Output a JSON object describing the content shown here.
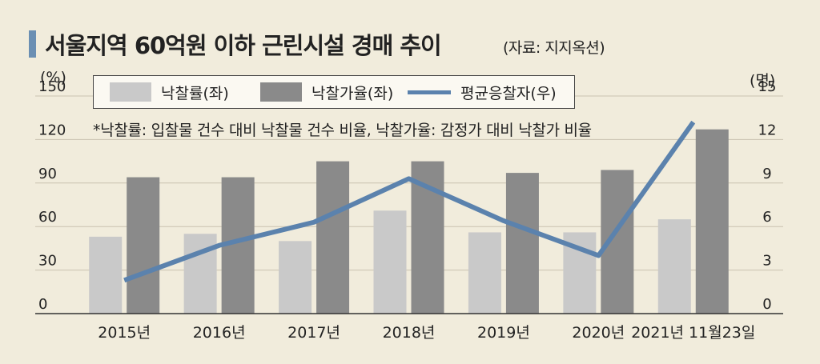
{
  "header": {
    "title": "서울지역 60억원 이하 근린시설 경매 추이",
    "source": "(자료: 지지옥션)"
  },
  "footnote": "*낙찰률: 입찰물 건수 대비 낙찰물 건수 비율, 낙찰가율: 감정가 대비 낙찰가 비율",
  "colors": {
    "background": "#f1ecdc",
    "rate_bar": "#c9c9c9",
    "price_ratio_bar": "#8a8a8a",
    "bidders_line": "#5b82ad",
    "gridline": "#c9c2b0"
  },
  "chart_data": {
    "type": "bar",
    "categories": [
      "2015년",
      "2016년",
      "2017년",
      "2018년",
      "2019년",
      "2020년",
      "2021년 11월23일"
    ],
    "series": [
      {
        "name": "낙찰률(좌)",
        "type": "bar",
        "axis": "left",
        "values": [
          53,
          55,
          50,
          71,
          56,
          56,
          65
        ]
      },
      {
        "name": "낙찰가율(좌)",
        "type": "bar",
        "axis": "left",
        "values": [
          94,
          94,
          105,
          105,
          97,
          99,
          127
        ]
      },
      {
        "name": "평균응찰자(우)",
        "type": "line",
        "axis": "right",
        "values": [
          2.3,
          4.7,
          6.3,
          9.3,
          6.4,
          4.0,
          13.2
        ]
      }
    ],
    "y_left": {
      "unit_label": "(%)",
      "ticks": [
        0,
        30,
        60,
        90,
        120,
        150
      ],
      "ylim": [
        0,
        150
      ]
    },
    "y_right": {
      "unit_label": "(명)",
      "ticks": [
        0,
        3,
        6,
        9,
        12,
        15
      ],
      "ylim": [
        0,
        15
      ]
    },
    "grid": true,
    "legend_position": "top-left"
  }
}
